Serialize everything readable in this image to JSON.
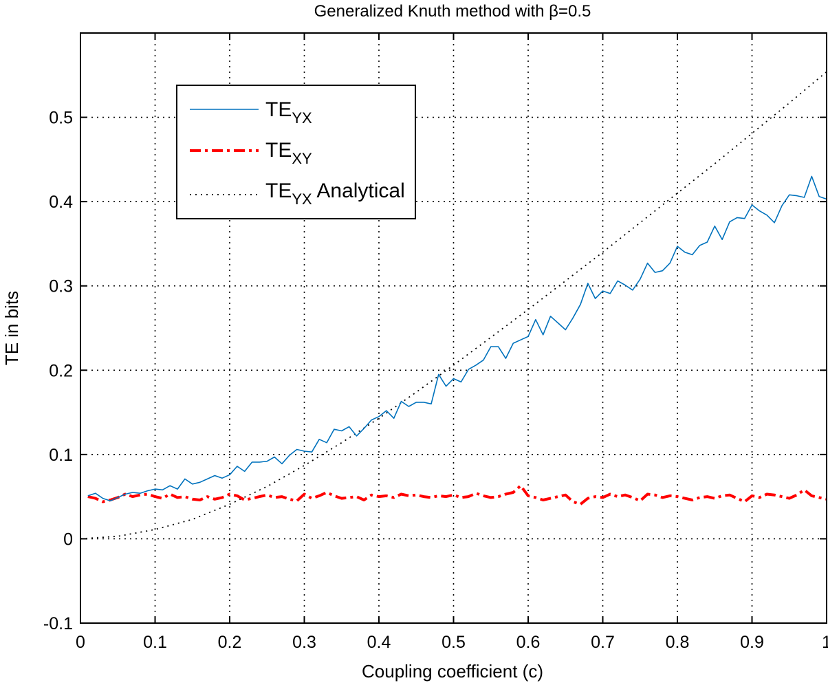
{
  "chart_data": {
    "type": "line",
    "title": "Generalized Knuth method with β=0.5",
    "xlabel": "Coupling coefficient (c)",
    "ylabel": "TE in bits",
    "xlim": [
      0,
      1
    ],
    "ylim": [
      -0.1,
      0.6
    ],
    "xticks": [
      "0",
      "0.1",
      "0.2",
      "0.3",
      "0.4",
      "0.5",
      "0.6",
      "0.7",
      "0.8",
      "0.9",
      "1"
    ],
    "yticks": [
      "-0.1",
      "0",
      "0.1",
      "0.2",
      "0.3",
      "0.4",
      "0.5"
    ],
    "grid": true,
    "legend_position": "top-left",
    "legend": [
      {
        "main": "TE",
        "sub": "YX",
        "suffix": ""
      },
      {
        "main": "TE",
        "sub": "XY",
        "suffix": ""
      },
      {
        "main": "TE",
        "sub": "YX",
        "suffix": " Analytical"
      }
    ],
    "series": [
      {
        "name": "TE_YX",
        "color": "#0072BD",
        "style": "solid",
        "x": [
          0.01,
          0.02,
          0.03,
          0.04,
          0.05,
          0.06,
          0.07,
          0.08,
          0.09,
          0.1,
          0.11,
          0.12,
          0.13,
          0.14,
          0.15,
          0.16,
          0.17,
          0.18,
          0.19,
          0.2,
          0.21,
          0.22,
          0.23,
          0.24,
          0.25,
          0.26,
          0.27,
          0.28,
          0.29,
          0.3,
          0.31,
          0.32,
          0.33,
          0.34,
          0.35,
          0.36,
          0.37,
          0.38,
          0.39,
          0.4,
          0.41,
          0.42,
          0.43,
          0.44,
          0.45,
          0.46,
          0.47,
          0.48,
          0.49,
          0.5,
          0.51,
          0.52,
          0.53,
          0.54,
          0.55,
          0.56,
          0.57,
          0.58,
          0.59,
          0.6,
          0.61,
          0.62,
          0.63,
          0.64,
          0.65,
          0.66,
          0.67,
          0.68,
          0.69,
          0.7,
          0.71,
          0.72,
          0.73,
          0.74,
          0.75,
          0.76,
          0.77,
          0.78,
          0.79,
          0.8,
          0.81,
          0.82,
          0.83,
          0.84,
          0.85,
          0.86,
          0.87,
          0.88,
          0.89,
          0.9,
          0.91,
          0.92,
          0.93,
          0.94,
          0.95,
          0.96,
          0.97,
          0.98,
          0.99,
          1.0
        ],
        "y": [
          0.051,
          0.054,
          0.048,
          0.045,
          0.049,
          0.053,
          0.055,
          0.054,
          0.057,
          0.059,
          0.058,
          0.063,
          0.059,
          0.071,
          0.065,
          0.067,
          0.071,
          0.075,
          0.072,
          0.076,
          0.086,
          0.08,
          0.091,
          0.091,
          0.092,
          0.097,
          0.089,
          0.099,
          0.106,
          0.104,
          0.103,
          0.118,
          0.114,
          0.13,
          0.128,
          0.133,
          0.122,
          0.131,
          0.141,
          0.145,
          0.152,
          0.143,
          0.163,
          0.157,
          0.162,
          0.162,
          0.16,
          0.195,
          0.181,
          0.19,
          0.186,
          0.201,
          0.206,
          0.212,
          0.228,
          0.228,
          0.214,
          0.232,
          0.236,
          0.24,
          0.26,
          0.242,
          0.264,
          0.256,
          0.248,
          0.262,
          0.278,
          0.303,
          0.285,
          0.294,
          0.291,
          0.306,
          0.301,
          0.295,
          0.308,
          0.327,
          0.316,
          0.318,
          0.327,
          0.347,
          0.34,
          0.337,
          0.348,
          0.352,
          0.371,
          0.355,
          0.376,
          0.381,
          0.38,
          0.396,
          0.389,
          0.384,
          0.375,
          0.395,
          0.408,
          0.407,
          0.405,
          0.43,
          0.406,
          0.403
        ]
      },
      {
        "name": "TE_XY",
        "color": "#FF0000",
        "style": "dashdot",
        "x": [
          0.01,
          0.02,
          0.03,
          0.04,
          0.05,
          0.06,
          0.07,
          0.08,
          0.09,
          0.1,
          0.11,
          0.12,
          0.13,
          0.14,
          0.15,
          0.16,
          0.17,
          0.18,
          0.19,
          0.2,
          0.21,
          0.22,
          0.23,
          0.24,
          0.25,
          0.26,
          0.27,
          0.28,
          0.29,
          0.3,
          0.31,
          0.32,
          0.33,
          0.34,
          0.35,
          0.36,
          0.37,
          0.38,
          0.39,
          0.4,
          0.41,
          0.42,
          0.43,
          0.44,
          0.45,
          0.46,
          0.47,
          0.48,
          0.49,
          0.5,
          0.51,
          0.52,
          0.53,
          0.54,
          0.55,
          0.56,
          0.57,
          0.58,
          0.59,
          0.6,
          0.61,
          0.62,
          0.63,
          0.64,
          0.65,
          0.66,
          0.67,
          0.68,
          0.69,
          0.7,
          0.71,
          0.72,
          0.73,
          0.74,
          0.75,
          0.76,
          0.77,
          0.78,
          0.79,
          0.8,
          0.81,
          0.82,
          0.83,
          0.84,
          0.85,
          0.86,
          0.87,
          0.88,
          0.89,
          0.9,
          0.91,
          0.92,
          0.93,
          0.94,
          0.95,
          0.96,
          0.97,
          0.98,
          0.99,
          1.0
        ],
        "y": [
          0.05,
          0.048,
          0.044,
          0.046,
          0.049,
          0.053,
          0.05,
          0.052,
          0.053,
          0.05,
          0.048,
          0.053,
          0.049,
          0.05,
          0.047,
          0.046,
          0.05,
          0.047,
          0.049,
          0.053,
          0.051,
          0.046,
          0.048,
          0.05,
          0.052,
          0.049,
          0.05,
          0.047,
          0.045,
          0.053,
          0.048,
          0.051,
          0.055,
          0.051,
          0.048,
          0.049,
          0.05,
          0.046,
          0.052,
          0.05,
          0.051,
          0.049,
          0.053,
          0.051,
          0.052,
          0.05,
          0.049,
          0.051,
          0.05,
          0.052,
          0.049,
          0.05,
          0.054,
          0.051,
          0.049,
          0.05,
          0.053,
          0.055,
          0.063,
          0.051,
          0.049,
          0.046,
          0.048,
          0.05,
          0.052,
          0.044,
          0.041,
          0.048,
          0.05,
          0.049,
          0.053,
          0.05,
          0.052,
          0.049,
          0.045,
          0.053,
          0.052,
          0.049,
          0.051,
          0.05,
          0.048,
          0.046,
          0.049,
          0.05,
          0.048,
          0.051,
          0.052,
          0.048,
          0.044,
          0.051,
          0.049,
          0.053,
          0.052,
          0.05,
          0.048,
          0.052,
          0.058,
          0.051,
          0.049,
          0.047
        ]
      },
      {
        "name": "TE_YX Analytical",
        "color": "#000000",
        "style": "dotted",
        "x": [
          0.0,
          0.05,
          0.1,
          0.15,
          0.2,
          0.25,
          0.3,
          0.35,
          0.4,
          0.45,
          0.5,
          0.55,
          0.6,
          0.65,
          0.7,
          0.75,
          0.8,
          0.85,
          0.9,
          0.95,
          1.0
        ],
        "y": [
          0.0,
          0.003,
          0.011,
          0.023,
          0.041,
          0.062,
          0.087,
          0.114,
          0.143,
          0.174,
          0.206,
          0.239,
          0.272,
          0.306,
          0.34,
          0.375,
          0.41,
          0.445,
          0.481,
          0.517,
          0.554
        ]
      }
    ]
  }
}
